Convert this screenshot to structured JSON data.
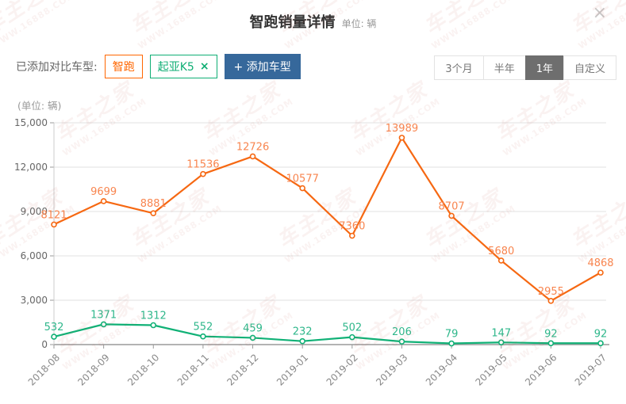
{
  "header": {
    "title": "智跑销量详情",
    "unit_note": "单位: 辆",
    "close_glyph": "×"
  },
  "toolbar": {
    "compare_label": "已添加对比车型:",
    "tags": [
      {
        "label": "智跑",
        "color": "#ff6600",
        "closable": false
      },
      {
        "label": "起亚K5",
        "color": "#0fae74",
        "closable": true,
        "close_glyph": "×"
      }
    ],
    "add_button_label": "+ 添加车型"
  },
  "range_selector": {
    "options": [
      "3个月",
      "半年",
      "1年",
      "自定义"
    ],
    "selected": "1年"
  },
  "chart_data": {
    "type": "line",
    "title": "智跑销量详情",
    "unit_label": "(单位: 辆)",
    "categories": [
      "2018-08",
      "2018-09",
      "2018-10",
      "2018-11",
      "2018-12",
      "2019-01",
      "2019-02",
      "2019-03",
      "2019-04",
      "2019-05",
      "2019-06",
      "2019-07"
    ],
    "series": [
      {
        "name": "智跑",
        "color": "#f66812",
        "label_color": "#f8854f",
        "values": [
          8121,
          9699,
          8881,
          11536,
          12726,
          10577,
          7360,
          13989,
          8707,
          5680,
          2955,
          4868
        ]
      },
      {
        "name": "起亚K5",
        "color": "#10b176",
        "label_color": "#2fb78b",
        "values": [
          532,
          1371,
          1312,
          552,
          459,
          232,
          502,
          206,
          79,
          147,
          92,
          92
        ]
      }
    ],
    "ylim": [
      0,
      15000
    ],
    "ytick_step": 3000,
    "ytick_labels": [
      "0",
      "3,000",
      "6,000",
      "9,000",
      "12,000",
      "15,000"
    ],
    "grid": true,
    "legend_position": "none",
    "xlabel": "",
    "ylabel": ""
  },
  "watermark": {
    "line1": "车主之家",
    "line2": "WWW.16888.COM"
  }
}
